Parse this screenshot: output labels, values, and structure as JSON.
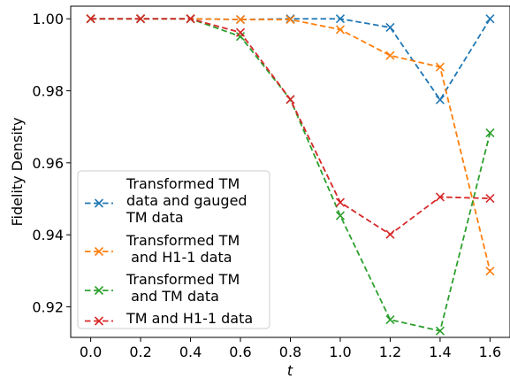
{
  "chart_data": {
    "type": "line",
    "xlabel": "t",
    "ylabel": "Fidelity Density",
    "xlim": [
      -0.08,
      1.68
    ],
    "ylim": [
      0.9115,
      1.0035
    ],
    "xticks": [
      0.0,
      0.2,
      0.4,
      0.6,
      0.8,
      1.0,
      1.2,
      1.4,
      1.6
    ],
    "xtick_labels": [
      "0.0",
      "0.2",
      "0.4",
      "0.6",
      "0.8",
      "1.0",
      "1.2",
      "1.4",
      "1.6"
    ],
    "yticks": [
      0.92,
      0.94,
      0.96,
      0.98,
      1.0
    ],
    "ytick_labels": [
      "0.92",
      "0.94",
      "0.96",
      "0.98",
      "1.00"
    ],
    "grid": false,
    "legend_position": "lower-left",
    "x": [
      0.0,
      0.2,
      0.4,
      0.6,
      0.8,
      1.0,
      1.2,
      1.4,
      1.6
    ],
    "series": [
      {
        "name": "Transformed TM\ndata and gauged\nTM data",
        "color": "#1f77b4",
        "values": [
          1.0,
          1.0,
          1.0,
          0.9998,
          1.0,
          1.0,
          0.9976,
          0.9775,
          1.0
        ]
      },
      {
        "name": "Transformed TM\n and H1-1 data",
        "color": "#ff7f0e",
        "values": [
          1.0,
          1.0,
          1.0,
          0.9998,
          0.9998,
          0.997,
          0.9898,
          0.9866,
          0.9299
        ]
      },
      {
        "name": "Transformed TM\n and TM data",
        "color": "#2ca02c",
        "values": [
          1.0,
          1.0,
          1.0,
          0.9951,
          0.9776,
          0.9453,
          0.9164,
          0.9133,
          0.9683
        ]
      },
      {
        "name": "TM and H1-1 data",
        "color": "#d62728",
        "values": [
          1.0,
          1.0,
          1.0,
          0.9962,
          0.9776,
          0.949,
          0.9401,
          0.9505,
          0.9501
        ]
      }
    ]
  }
}
